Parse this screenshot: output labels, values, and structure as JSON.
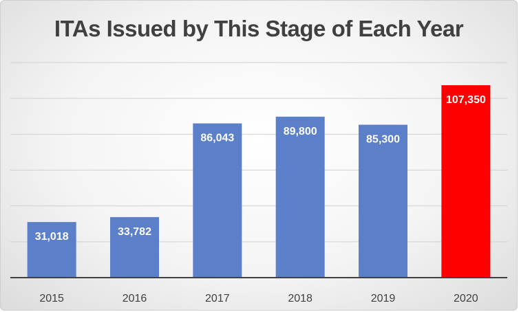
{
  "chart_data": {
    "type": "bar",
    "title": "ITAs Issued by This Stage of Each Year",
    "categories": [
      "2015",
      "2016",
      "2017",
      "2018",
      "2019",
      "2020"
    ],
    "values": [
      31018,
      33782,
      86043,
      89800,
      85300,
      107350
    ],
    "value_labels": [
      "31,018",
      "33,782",
      "86,043",
      "89,800",
      "85,300",
      "107,350"
    ],
    "colors": [
      "#5b80c9",
      "#5b80c9",
      "#5b80c9",
      "#5b80c9",
      "#5b80c9",
      "#ff0000"
    ],
    "ylim": [
      0,
      120000
    ],
    "grid": true,
    "legend": "none",
    "xlabel": "",
    "ylabel": ""
  }
}
